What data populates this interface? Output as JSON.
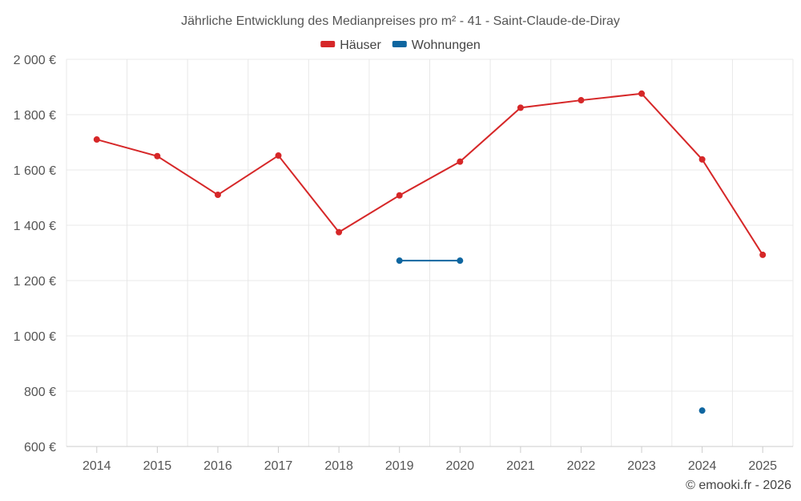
{
  "chart_data": {
    "type": "line",
    "title": "Jährliche Entwicklung des Medianpreises pro m² - 41 - Saint-Claude-de-Diray",
    "credit": "© emooki.fr - 2026",
    "x": [
      "2014",
      "2015",
      "2016",
      "2017",
      "2018",
      "2019",
      "2020",
      "2021",
      "2022",
      "2023",
      "2024",
      "2025"
    ],
    "ylim": [
      600,
      2000
    ],
    "yticks": [
      600,
      800,
      1000,
      1200,
      1400,
      1600,
      1800,
      2000
    ],
    "ytick_labels": [
      "600 €",
      "800 €",
      "1 000 €",
      "1 200 €",
      "1 400 €",
      "1 600 €",
      "1 800 €",
      "2 000 €"
    ],
    "grid": true,
    "legend_position": "top-center",
    "series": [
      {
        "name": "Häuser",
        "color": "#d62728",
        "values": [
          1710,
          1650,
          1510,
          1652,
          1375,
          1508,
          1630,
          1825,
          1852,
          1876,
          1638,
          1293
        ]
      },
      {
        "name": "Wohnungen",
        "color": "#0f66a0",
        "values": [
          null,
          null,
          null,
          null,
          null,
          1272,
          1272,
          null,
          null,
          null,
          730,
          null
        ]
      }
    ]
  }
}
